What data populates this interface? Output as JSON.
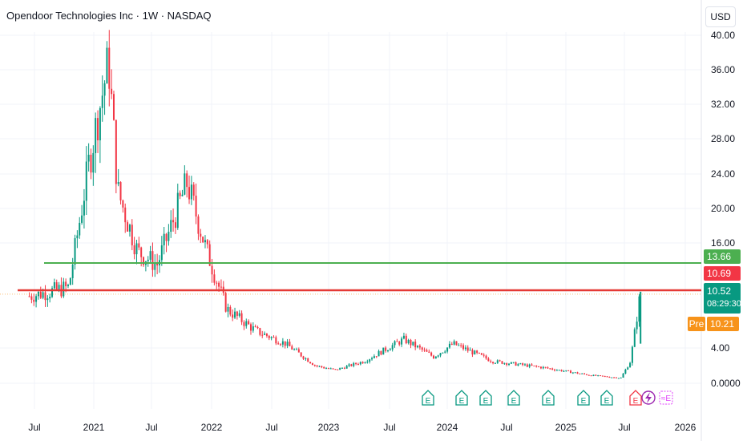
{
  "header": {
    "title": "Opendoor Technologies Inc · 1W · NASDAQ",
    "currency_button": "USD"
  },
  "colors": {
    "up": "#089981",
    "down": "#f23645",
    "support_line": "#4caf50",
    "resistance_line": "#e53935",
    "premarket": "#f7931a",
    "grid": "#f0f3fa",
    "axis_text": "#131722"
  },
  "price_tags": {
    "support": "13.66",
    "resistance": "10.69",
    "last": "10.52",
    "countdown": "08:29:30",
    "premarket_label": "Pre",
    "premarket_value": "10.21"
  },
  "events": {
    "earnings_label": "E",
    "dividend_icon": "lightning-icon",
    "split_label": "≈E"
  },
  "chart_data": {
    "type": "candlestick",
    "title": "Opendoor Technologies Inc · 1W · NASDAQ",
    "y_ticks": [
      "40.00",
      "36.00",
      "32.00",
      "28.00",
      "24.00",
      "20.00",
      "16.00",
      "4.00",
      "0.0000"
    ],
    "x_ticks": [
      "Jul",
      "2021",
      "Jul",
      "2022",
      "Jul",
      "2023",
      "Jul",
      "2024",
      "Jul",
      "2025",
      "Jul",
      "2026"
    ],
    "horizontal_lines": [
      {
        "value": 13.66,
        "color": "#4caf50"
      },
      {
        "value": 10.69,
        "color": "#e53935"
      }
    ],
    "last_price": 10.52,
    "premarket_price": 10.21,
    "price_path": [
      {
        "date": "2020-06",
        "price": 10.0
      },
      {
        "date": "2020-10",
        "price": 11.0
      },
      {
        "date": "2020-11",
        "price": 18.0
      },
      {
        "date": "2020-12",
        "price": 25.0
      },
      {
        "date": "2021-02",
        "price": 37.0
      },
      {
        "date": "2021-03",
        "price": 22.0
      },
      {
        "date": "2021-05",
        "price": 15.0
      },
      {
        "date": "2021-07",
        "price": 13.5
      },
      {
        "date": "2021-10",
        "price": 23.0
      },
      {
        "date": "2021-12",
        "price": 15.0
      },
      {
        "date": "2022-02",
        "price": 8.5
      },
      {
        "date": "2022-05",
        "price": 6.0
      },
      {
        "date": "2022-08",
        "price": 4.5
      },
      {
        "date": "2022-11",
        "price": 2.0
      },
      {
        "date": "2023-01",
        "price": 1.5
      },
      {
        "date": "2023-04",
        "price": 2.5
      },
      {
        "date": "2023-08",
        "price": 5.0
      },
      {
        "date": "2023-11",
        "price": 3.0
      },
      {
        "date": "2024-01",
        "price": 4.5
      },
      {
        "date": "2024-05",
        "price": 2.5
      },
      {
        "date": "2024-10",
        "price": 1.8
      },
      {
        "date": "2025-03",
        "price": 0.9
      },
      {
        "date": "2025-06",
        "price": 0.6
      },
      {
        "date": "2025-07",
        "price": 2.5
      },
      {
        "date": "2025-08",
        "price": 10.52
      }
    ]
  }
}
